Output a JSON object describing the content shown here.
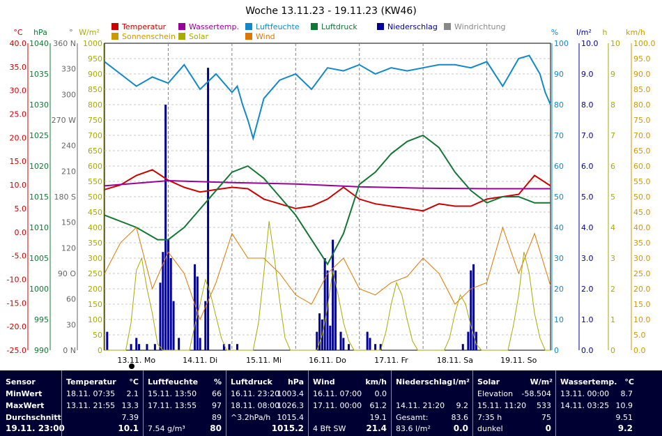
{
  "chart_data": {
    "type": "line",
    "title": "Woche 13.11.23 - 19.11.23 (KW46)",
    "x_labels": [
      "13.11. Mo",
      "14.11. Di",
      "15.11. Mi",
      "16.11. Do",
      "17.11. Fr",
      "18.11. Sa",
      "19.11. So"
    ],
    "legend": [
      {
        "label": "Temperatur",
        "color": "#cc0000"
      },
      {
        "label": "Wassertemp.",
        "color": "#990099"
      },
      {
        "label": "Luftfeuchte",
        "color": "#1188cc"
      },
      {
        "label": "Luftdruck",
        "color": "#117733"
      },
      {
        "label": "Niederschlag",
        "color": "#000099"
      },
      {
        "label": "Windrichtung",
        "color": "#888888"
      },
      {
        "label": "Sonnenschein",
        "color": "#cc9900"
      },
      {
        "label": "Solar",
        "color": "#aaaa00"
      },
      {
        "label": "Wind",
        "color": "#dd7700"
      }
    ],
    "axes": {
      "temp": {
        "unit": "°C",
        "color": "#cc0000",
        "ticks": [
          "40.0",
          "35.0",
          "30.0",
          "25.0",
          "20.0",
          "15.0",
          "10.0",
          "5.0",
          "0.0",
          "-5.0",
          "-10.0",
          "-15.0",
          "-20.0",
          "-25.0"
        ]
      },
      "pressure": {
        "unit": "hPa",
        "color": "#117733",
        "ticks": [
          "1040",
          "1035",
          "1030",
          "1025",
          "1020",
          "1015",
          "1010",
          "1005",
          "1000",
          "995",
          "990"
        ]
      },
      "winddir": {
        "unit": "°",
        "color": "#666666",
        "ticks": [
          "360 N",
          "330",
          "300",
          "270 W",
          "240",
          "210",
          "180 S",
          "150",
          "120",
          "90 O",
          "60",
          "30",
          "0 N"
        ]
      },
      "solar": {
        "unit": "W/m²",
        "color": "#aaaa00",
        "ticks": [
          "1000",
          "950",
          "900",
          "850",
          "800",
          "750",
          "700",
          "650",
          "600",
          "550",
          "500",
          "450",
          "400",
          "350",
          "300",
          "250",
          "200",
          "150",
          "100",
          "50",
          "0"
        ]
      },
      "humidity": {
        "unit": "%",
        "color": "#1188cc",
        "ticks": [
          "100",
          "90",
          "80",
          "70",
          "60",
          "50",
          "40",
          "30",
          "20",
          "10",
          "0"
        ]
      },
      "rain": {
        "unit": "l/m²",
        "color": "#000099",
        "ticks": [
          "10.0",
          "9.0",
          "8.0",
          "7.0",
          "6.0",
          "5.0",
          "4.0",
          "3.0",
          "2.0",
          "1.0",
          "0.0"
        ]
      },
      "sun": {
        "unit": "h",
        "color": "#aaaa00",
        "ticks": [
          "10",
          "9",
          "8",
          "7",
          "6",
          "5",
          "4",
          "3",
          "2",
          "1",
          "0"
        ]
      },
      "wind": {
        "unit": "km/h",
        "color": "#cc9900",
        "ticks": [
          "100.0",
          "95.0",
          "90.0",
          "85.0",
          "80.0",
          "75.0",
          "70.0",
          "65.0",
          "60.0",
          "55.0",
          "50.0",
          "45.0",
          "40.0",
          "35.0",
          "30.0",
          "25.0",
          "20.0",
          "15.0",
          "10.0",
          "5.0",
          "0.0"
        ]
      }
    },
    "x_range_hours": [
      0,
      168
    ],
    "series": [
      {
        "name": "Temperatur",
        "axis": "temp",
        "color": "#cc0000",
        "x": [
          0,
          6,
          12,
          18,
          24,
          30,
          36,
          42,
          48,
          54,
          60,
          66,
          72,
          78,
          84,
          90,
          96,
          102,
          108,
          114,
          120,
          126,
          132,
          138,
          144,
          150,
          156,
          162,
          168
        ],
        "y": [
          9,
          10,
          12,
          13.2,
          11,
          9.5,
          8.5,
          9,
          9.5,
          9.2,
          7,
          6,
          5,
          5.5,
          7,
          9.5,
          7,
          6,
          5.5,
          5,
          4.5,
          6,
          5.5,
          5.5,
          7,
          7.5,
          8,
          12,
          9.8
        ]
      },
      {
        "name": "Wassertemp.",
        "axis": "temp",
        "color": "#990099",
        "x": [
          0,
          24,
          48,
          72,
          96,
          120,
          144,
          168
        ],
        "y": [
          9.8,
          10.9,
          10.5,
          10.2,
          9.6,
          9.3,
          9.2,
          9.2
        ]
      },
      {
        "name": "Luftfeuchte",
        "axis": "humidity",
        "color": "#1188cc",
        "x": [
          0,
          6,
          12,
          18,
          24,
          30,
          36,
          42,
          48,
          50,
          52,
          54,
          56,
          60,
          66,
          72,
          78,
          84,
          90,
          96,
          102,
          108,
          114,
          120,
          126,
          132,
          138,
          144,
          150,
          156,
          160,
          164,
          166,
          168
        ],
        "y": [
          94,
          90,
          86,
          89,
          87,
          93,
          85,
          90,
          84,
          86,
          80,
          75,
          69,
          82,
          88,
          90,
          85,
          92,
          91,
          93,
          90,
          92,
          91,
          92,
          93,
          93,
          92,
          94,
          86,
          95,
          96,
          90,
          84,
          80
        ]
      },
      {
        "name": "Luftdruck",
        "axis": "pressure",
        "color": "#117733",
        "x": [
          0,
          12,
          20,
          24,
          30,
          36,
          42,
          48,
          54,
          60,
          66,
          72,
          78,
          84,
          90,
          96,
          102,
          108,
          114,
          120,
          126,
          132,
          138,
          144,
          150,
          156,
          162,
          168
        ],
        "y": [
          1012,
          1010,
          1008,
          1008,
          1010,
          1013,
          1016,
          1019,
          1020,
          1018,
          1015,
          1012,
          1008,
          1004,
          1009,
          1017,
          1019,
          1022,
          1024,
          1025,
          1023,
          1019,
          1016,
          1014,
          1015,
          1015,
          1014,
          1014
        ]
      },
      {
        "name": "Wind",
        "axis": "wind",
        "color": "#dd7700",
        "x": [
          0,
          6,
          12,
          18,
          24,
          30,
          36,
          42,
          48,
          54,
          60,
          66,
          72,
          78,
          84,
          90,
          96,
          102,
          108,
          114,
          120,
          126,
          132,
          138,
          144,
          150,
          156,
          162,
          168
        ],
        "y": [
          25,
          35,
          40,
          20,
          32,
          25,
          10,
          22,
          38,
          30,
          30,
          25,
          18,
          15,
          25,
          30,
          20,
          18,
          22,
          24,
          30,
          25,
          15,
          20,
          22,
          40,
          25,
          38,
          21
        ]
      },
      {
        "name": "Solar",
        "axis": "solar",
        "color": "#aaaa00",
        "x": [
          0,
          8,
          10,
          12,
          14,
          16,
          18,
          20,
          22,
          24,
          32,
          34,
          36,
          38,
          40,
          42,
          44,
          46,
          48,
          56,
          58,
          60,
          62,
          64,
          66,
          68,
          70,
          72,
          80,
          82,
          84,
          86,
          88,
          90,
          92,
          94,
          96,
          104,
          106,
          108,
          110,
          112,
          114,
          116,
          118,
          120,
          128,
          130,
          132,
          134,
          136,
          138,
          140,
          142,
          144,
          152,
          154,
          156,
          158,
          160,
          162,
          164,
          166,
          168
        ],
        "y": [
          0,
          0,
          90,
          260,
          300,
          200,
          120,
          20,
          0,
          0,
          0,
          80,
          150,
          230,
          180,
          110,
          40,
          0,
          0,
          0,
          90,
          250,
          420,
          300,
          160,
          40,
          0,
          0,
          0,
          50,
          140,
          260,
          180,
          90,
          30,
          0,
          0,
          0,
          60,
          150,
          220,
          180,
          100,
          30,
          0,
          0,
          0,
          40,
          120,
          180,
          150,
          80,
          20,
          0,
          0,
          0,
          80,
          180,
          320,
          250,
          120,
          40,
          0,
          0
        ]
      }
    ],
    "niederschlag_bars": [
      {
        "x": 1,
        "v": 0.6
      },
      {
        "x": 10,
        "v": 0.2
      },
      {
        "x": 12,
        "v": 0.4
      },
      {
        "x": 13,
        "v": 0.2
      },
      {
        "x": 16,
        "v": 0.2
      },
      {
        "x": 19,
        "v": 0.2
      },
      {
        "x": 21,
        "v": 2.2
      },
      {
        "x": 22,
        "v": 3.2
      },
      {
        "x": 23,
        "v": 8.0
      },
      {
        "x": 24,
        "v": 3.6
      },
      {
        "x": 25,
        "v": 3.0
      },
      {
        "x": 26,
        "v": 1.6
      },
      {
        "x": 28,
        "v": 0.4
      },
      {
        "x": 34,
        "v": 2.8
      },
      {
        "x": 35,
        "v": 2.4
      },
      {
        "x": 36,
        "v": 0.4
      },
      {
        "x": 38,
        "v": 1.6
      },
      {
        "x": 39,
        "v": 9.2
      },
      {
        "x": 45,
        "v": 0.2
      },
      {
        "x": 47,
        "v": 0.2
      },
      {
        "x": 50,
        "v": 0.2
      },
      {
        "x": 80,
        "v": 0.6
      },
      {
        "x": 81,
        "v": 1.2
      },
      {
        "x": 82,
        "v": 1.0
      },
      {
        "x": 83,
        "v": 3.0
      },
      {
        "x": 84,
        "v": 2.6
      },
      {
        "x": 85,
        "v": 0.8
      },
      {
        "x": 86,
        "v": 3.6
      },
      {
        "x": 87,
        "v": 2.6
      },
      {
        "x": 89,
        "v": 0.6
      },
      {
        "x": 90,
        "v": 0.4
      },
      {
        "x": 92,
        "v": 0.2
      },
      {
        "x": 99,
        "v": 0.6
      },
      {
        "x": 100,
        "v": 0.4
      },
      {
        "x": 102,
        "v": 0.2
      },
      {
        "x": 104,
        "v": 0.2
      },
      {
        "x": 135,
        "v": 0.2
      },
      {
        "x": 137,
        "v": 0.6
      },
      {
        "x": 138,
        "v": 2.6
      },
      {
        "x": 139,
        "v": 2.8
      },
      {
        "x": 140,
        "v": 0.6
      }
    ]
  },
  "table": {
    "headers": {
      "sensor": "Sensor",
      "temp": "Temperatur",
      "temp_u": "°C",
      "hum": "Luftfeuchte",
      "hum_u": "%",
      "press": "Luftdruck",
      "press_u": "hPa",
      "wind": "Wind",
      "wind_u": "km/h",
      "rain": "Niederschlag",
      "rain_u": "l/m²",
      "solar": "Solar",
      "solar_u": "W/m²",
      "water": "Wassertemp.",
      "water_u": "°C"
    },
    "row_labels": {
      "min": "MinWert",
      "max": "MaxWert",
      "avg": "Durchschnitt",
      "now": "19.11. 23:00"
    },
    "temp": {
      "min_t": "18.11. 07:35",
      "min_v": "2.1",
      "max_t": "13.11. 21:55",
      "max_v": "13.3",
      "avg_v": "7.39",
      "now_v": "10.1"
    },
    "hum": {
      "min_t": "15.11. 13:50",
      "min_v": "66",
      "max_t": "17.11. 13:55",
      "max_v": "97",
      "avg_v": "89",
      "now_extra": "7.54 g/m³",
      "now_v": "80"
    },
    "press": {
      "min_t": "16.11. 23:20",
      "min_v": "1003.4",
      "max_t": "18.11. 08:00",
      "max_v": "1026.3",
      "trend_t": "^3.2hPa/h",
      "avg_v": "1015.4",
      "now_v": "1015.2"
    },
    "wind": {
      "min_t": "16.11. 07:00",
      "min_v": "0.0",
      "max_t": "17.11. 00:00",
      "max_v": "61.2",
      "avg_v": "19.1",
      "now_extra": "4 Bft SW",
      "now_v": "21.4"
    },
    "rain": {
      "max_t": "14.11. 21:20",
      "max_v": "9.2",
      "total_l": "Gesamt:",
      "total_v": "83.6",
      "now_extra": "83.6 l/m²",
      "now_v": "0.0"
    },
    "solar": {
      "min_t": "Elevation",
      "min_v": "-58.504",
      "max_t": "15.11. 11:20",
      "max_v": "533",
      "avg_t": "7:35 h",
      "avg_v": "75",
      "now_t": "dunkel",
      "now_v": "0"
    },
    "water": {
      "min_t": "13.11. 00:00",
      "min_v": "8.7",
      "max_t": "14.11. 03:25",
      "max_v": "10.9",
      "avg_v": "9.51",
      "now_v": "9.2"
    }
  }
}
